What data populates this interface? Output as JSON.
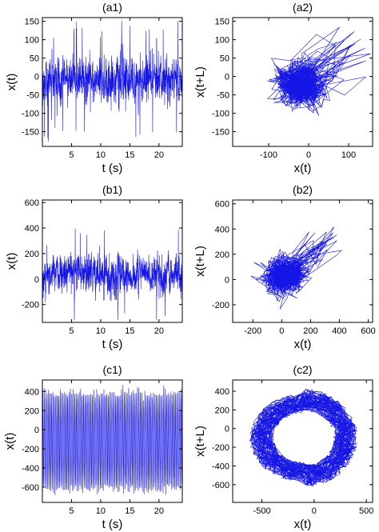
{
  "chart_data": [
    {
      "panel": "a1",
      "type": "line",
      "title": "(a1)",
      "xlabel": "t (s)",
      "ylabel": "x(t)",
      "xlim": [
        0,
        24
      ],
      "ylim": [
        -190,
        160
      ],
      "xticks": [
        5,
        10,
        15,
        20
      ],
      "yticks": [
        150,
        100,
        50,
        0,
        -50,
        -100,
        -150
      ],
      "tick_labels_x": [
        "5",
        "10",
        "15",
        "20"
      ],
      "tick_labels_y": [
        "150",
        "100",
        "50",
        "0",
        "-50",
        "-100",
        "-150"
      ],
      "color": "#1515e6",
      "series": [
        {
          "x_range": [
            0,
            24
          ],
          "mean": -10,
          "spread": 45,
          "min": -185,
          "max": 150,
          "samples": 1100
        }
      ]
    },
    {
      "panel": "a2",
      "type": "line",
      "title": "(a2)",
      "xlabel": "x(t)",
      "ylabel": "x(t+L)",
      "xlim": [
        -190,
        160
      ],
      "ylim": [
        -190,
        160
      ],
      "xticks": [
        -100,
        0,
        100
      ],
      "yticks": [
        150,
        100,
        50,
        0,
        -50,
        -100,
        -150
      ],
      "tick_labels_x": [
        "-100",
        "0",
        "100"
      ],
      "tick_labels_y": [
        "150",
        "100",
        "50",
        "0",
        "-50",
        "-100",
        "-150"
      ],
      "color": "#1515e6",
      "series": [
        {
          "center": [
            -20,
            -25
          ],
          "spread": [
            45,
            45
          ],
          "range_x": [
            -170,
            155
          ],
          "range_y": [
            -180,
            150
          ],
          "samples": 1100
        }
      ]
    },
    {
      "panel": "b1",
      "type": "line",
      "title": "(b1)",
      "xlabel": "t (s)",
      "ylabel": "x(t)",
      "xlim": [
        0,
        24
      ],
      "ylim": [
        -340,
        620
      ],
      "xticks": [
        5,
        10,
        15,
        20
      ],
      "yticks": [
        600,
        400,
        200,
        0,
        -200
      ],
      "tick_labels_x": [
        "5",
        "10",
        "15",
        "20"
      ],
      "tick_labels_y": [
        "600",
        "400",
        "200",
        "0",
        "-200"
      ],
      "color": "#1515e6",
      "series": [
        {
          "x_range": [
            0,
            24
          ],
          "mean": 30,
          "spread": 110,
          "min": -320,
          "max": 610,
          "samples": 1100
        }
      ]
    },
    {
      "panel": "b2",
      "type": "line",
      "title": "(b2)",
      "xlabel": "x(t)",
      "ylabel": "x(t+L)",
      "xlim": [
        -340,
        630
      ],
      "ylim": [
        -340,
        630
      ],
      "xticks": [
        -200,
        0,
        200,
        400,
        600
      ],
      "yticks": [
        600,
        400,
        200,
        0,
        -200
      ],
      "tick_labels_x": [
        "-200",
        "0",
        "200",
        "400",
        "600"
      ],
      "tick_labels_y": [
        "600",
        "400",
        "200",
        "0",
        "-200"
      ],
      "color": "#1515e6",
      "series": [
        {
          "center": [
            20,
            30
          ],
          "spread": [
            110,
            110
          ],
          "range_x": [
            -300,
            620
          ],
          "range_y": [
            -310,
            600
          ],
          "samples": 1100
        }
      ]
    },
    {
      "panel": "c1",
      "type": "line",
      "title": "(c1)",
      "xlabel": "t (s)",
      "ylabel": "x(t)",
      "xlim": [
        0,
        24
      ],
      "ylim": [
        -760,
        520
      ],
      "xticks": [
        5,
        10,
        15,
        20
      ],
      "yticks": [
        400,
        200,
        0,
        -200,
        -400,
        -600
      ],
      "tick_labels_x": [
        "5",
        "10",
        "15",
        "20"
      ],
      "tick_labels_y": [
        "400",
        "200",
        "0",
        "-200",
        "-400",
        "-600"
      ],
      "color": "#1515e6",
      "series": [
        {
          "x_range": [
            0,
            24
          ],
          "oscillation_period_s": 0.25,
          "min": -740,
          "max": 480,
          "samples": 2200
        }
      ]
    },
    {
      "panel": "c2",
      "type": "line",
      "title": "(c2)",
      "xlabel": "x(t)",
      "ylabel": "x(t+L)",
      "xlim": [
        -780,
        560
      ],
      "ylim": [
        -790,
        520
      ],
      "xticks": [
        -500,
        0,
        500
      ],
      "yticks": [
        400,
        200,
        0,
        -200,
        -400,
        -600
      ],
      "tick_labels_x": [
        "-500",
        "0",
        "500"
      ],
      "tick_labels_y": [
        "400",
        "200",
        "0",
        "-200",
        "-400",
        "-600"
      ],
      "color": "#1515e6",
      "series": [
        {
          "loop_center": [
            -100,
            -100
          ],
          "loop_radius": [
            520,
            500
          ],
          "samples": 1600
        }
      ]
    }
  ]
}
